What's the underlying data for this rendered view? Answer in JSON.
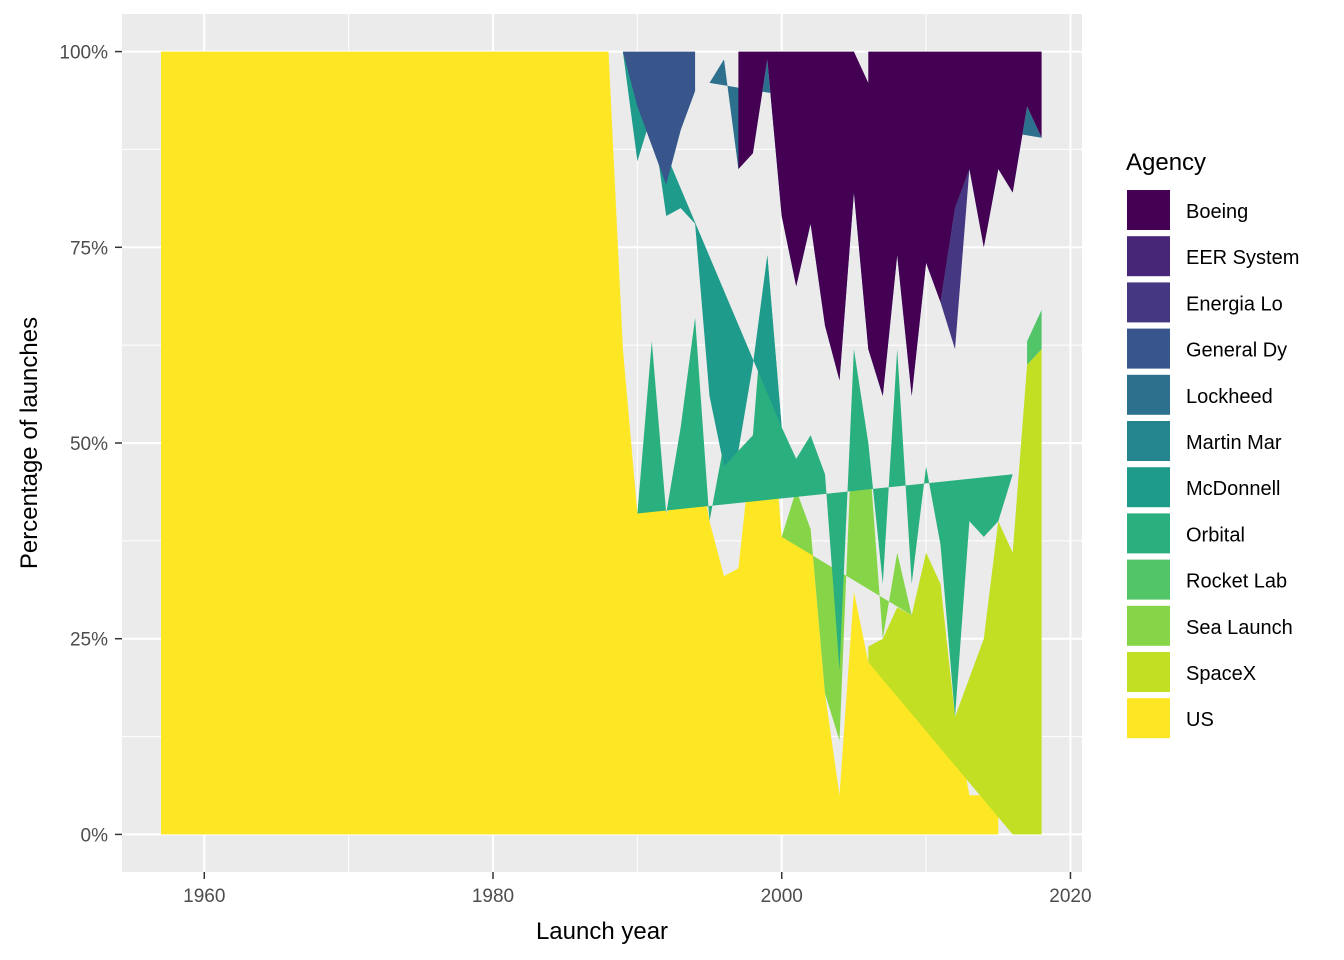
{
  "chart_data": {
    "type": "area",
    "xlabel": "Launch year",
    "ylabel": "Percentage of launches",
    "xlim": [
      1954.3,
      2020.8
    ],
    "ylim": [
      -0.048,
      1.048
    ],
    "x_ticks": [
      1960,
      1980,
      2000,
      2020
    ],
    "x_tick_labels": [
      "1960",
      "1980",
      "2000",
      "2020"
    ],
    "y_ticks": [
      0,
      0.25,
      0.5,
      0.75,
      1.0
    ],
    "y_tick_labels": [
      "0%",
      "25%",
      "50%",
      "75%",
      "100%"
    ],
    "grid": true,
    "legend": {
      "title": "Agency",
      "position": "right",
      "entries": [
        "Boeing",
        "EER System",
        "Energia Lo",
        "General Dy",
        "Lockheed",
        "Martin Mar",
        "McDonnell",
        "Orbital",
        "Rocket Lab",
        "Sea Launch",
        "SpaceX",
        "US"
      ]
    },
    "stack_order_bottom_to_top": [
      "US",
      "SpaceX",
      "Sea Launch",
      "Rocket Lab",
      "Orbital",
      "McDonnell",
      "Martin Mar",
      "Lockheed",
      "General Dy",
      "Energia Lo",
      "EER System",
      "Boeing"
    ],
    "series": [
      {
        "name": "US",
        "color": "#FDE725",
        "points": [
          [
            1957,
            1
          ],
          [
            1988,
            1
          ],
          [
            1989,
            0.62
          ],
          [
            1990,
            0.41
          ],
          [
            1991,
            0.58
          ],
          [
            1992,
            0.41
          ],
          [
            1993,
            0.44
          ],
          [
            1994,
            0.51
          ],
          [
            1995,
            0.4
          ],
          [
            1996,
            0.33
          ],
          [
            1997,
            0.34
          ],
          [
            1998,
            0.51
          ],
          [
            1999,
            0.61
          ],
          [
            2000,
            0.38
          ],
          [
            2001,
            0.39
          ],
          [
            2002,
            0.39
          ],
          [
            2003,
            0.18
          ],
          [
            2004,
            0.05
          ],
          [
            2005,
            0.31
          ],
          [
            2006,
            0.22
          ],
          [
            2007,
            0.2
          ],
          [
            2008,
            0.2
          ],
          [
            2009,
            0.24
          ],
          [
            2010,
            0.35
          ],
          [
            2011,
            0.32
          ],
          [
            2012,
            0.15
          ],
          [
            2013,
            0.05
          ],
          [
            2014,
            0.05
          ],
          [
            2015,
            0.05
          ]
        ]
      },
      {
        "name": "SpaceX",
        "color": "#C2DF23",
        "points": [
          [
            2006,
            0.22
          ],
          [
            2006,
            0.24
          ],
          [
            2007,
            0.25
          ],
          [
            2008,
            0.29
          ],
          [
            2009,
            0.28
          ],
          [
            2010,
            0.36
          ],
          [
            2011,
            0.32
          ],
          [
            2012,
            0.15
          ],
          [
            2013,
            0.2
          ],
          [
            2014,
            0.25
          ],
          [
            2015,
            0.4
          ],
          [
            2016,
            0.36
          ],
          [
            2017,
            0.6
          ],
          [
            2018,
            0.62
          ],
          [
            2018,
            0.0
          ],
          [
            2017,
            0.0
          ],
          [
            2016,
            0.0
          ]
        ]
      },
      {
        "name": "Sea Launch",
        "color": "#86D549",
        "points": [
          [
            2000,
            0.38
          ],
          [
            2001,
            0.44
          ],
          [
            2002,
            0.39
          ],
          [
            2003,
            0.18
          ],
          [
            2004,
            0.12
          ],
          [
            2005,
            0.57
          ],
          [
            2006,
            0.5
          ],
          [
            2007,
            0.25
          ],
          [
            2008,
            0.36
          ],
          [
            2009,
            0.28
          ]
        ]
      },
      {
        "name": "Rocket Lab",
        "color": "#52C569",
        "points": [
          [
            2017,
            0.6
          ],
          [
            2018,
            0.62
          ],
          [
            2018,
            0.67
          ],
          [
            2017,
            0.63
          ]
        ]
      },
      {
        "name": "Orbital",
        "color": "#2AB07F",
        "points": [
          [
            1990,
            0.41
          ],
          [
            1991,
            0.63
          ],
          [
            1992,
            0.41
          ],
          [
            1993,
            0.52
          ],
          [
            1994,
            0.66
          ],
          [
            1995,
            0.4
          ],
          [
            1996,
            0.5
          ],
          [
            1997,
            0.49
          ],
          [
            1998,
            0.51
          ],
          [
            1999,
            0.74
          ],
          [
            2000,
            0.52
          ],
          [
            2001,
            0.48
          ],
          [
            2002,
            0.51
          ],
          [
            2003,
            0.46
          ],
          [
            2004,
            0.21
          ],
          [
            2005,
            0.62
          ],
          [
            2006,
            0.5
          ],
          [
            2007,
            0.32
          ],
          [
            2008,
            0.62
          ],
          [
            2009,
            0.32
          ],
          [
            2010,
            0.47
          ],
          [
            2011,
            0.37
          ],
          [
            2012,
            0.15
          ],
          [
            2013,
            0.4
          ],
          [
            2014,
            0.38
          ],
          [
            2015,
            0.4
          ],
          [
            2016,
            0.46
          ]
        ]
      },
      {
        "name": "McDonnell",
        "color": "#1E9B8A",
        "points": [
          [
            1989,
            1.0
          ],
          [
            1990,
            0.86
          ],
          [
            1991,
            0.92
          ],
          [
            1992,
            0.79
          ],
          [
            1993,
            0.8
          ],
          [
            1994,
            0.78
          ],
          [
            1995,
            0.56
          ],
          [
            1996,
            0.47
          ],
          [
            1997,
            0.49
          ],
          [
            1998,
            0.6
          ],
          [
            1999,
            0.74
          ],
          [
            2000,
            0.52
          ]
        ]
      },
      {
        "name": "Martin Mar",
        "color": "#25858E",
        "points": [
          [
            1989,
            1.0
          ],
          [
            1990,
            0.93
          ],
          [
            1991,
            0.88
          ],
          [
            1992,
            0.83
          ],
          [
            1993,
            0.9
          ],
          [
            1994,
            0.95
          ]
        ]
      },
      {
        "name": "Lockheed",
        "color": "#2D708E",
        "points": [
          [
            1995,
            0.96
          ],
          [
            1996,
            0.99
          ],
          [
            1997,
            0.85
          ],
          [
            1998,
            0.87
          ],
          [
            1999,
            0.99
          ],
          [
            2000,
            0.79
          ],
          [
            2001,
            0.7
          ],
          [
            2002,
            0.78
          ],
          [
            2003,
            0.65
          ],
          [
            2004,
            0.58
          ],
          [
            2005,
            0.82
          ],
          [
            2006,
            0.62
          ],
          [
            2007,
            0.56
          ],
          [
            2008,
            0.74
          ],
          [
            2009,
            0.56
          ],
          [
            2010,
            0.73
          ],
          [
            2011,
            0.68
          ],
          [
            2012,
            0.8
          ],
          [
            2013,
            0.85
          ],
          [
            2014,
            0.75
          ],
          [
            2015,
            0.85
          ],
          [
            2016,
            0.82
          ],
          [
            2017,
            0.93
          ],
          [
            2018,
            0.89
          ]
        ]
      },
      {
        "name": "General Dy",
        "color": "#39568C",
        "points": [
          [
            1989,
            1.0
          ],
          [
            1994,
            1.0
          ],
          [
            1994,
            0.95
          ],
          [
            1993,
            0.9
          ],
          [
            1992,
            0.83
          ],
          [
            1991,
            0.88
          ],
          [
            1990,
            0.93
          ]
        ]
      },
      {
        "name": "Energia Lo",
        "color": "#453781",
        "points": [
          [
            2011,
            0.68
          ],
          [
            2012,
            0.8
          ],
          [
            2013,
            0.85
          ],
          [
            2012,
            0.62
          ]
        ]
      },
      {
        "name": "EER System",
        "color": "#482677",
        "points": []
      },
      {
        "name": "Boeing",
        "color": "#440154",
        "points": [
          [
            1997,
            1.0
          ],
          [
            2005,
            1.0
          ],
          [
            2006,
            0.96
          ],
          [
            2006,
            1.0
          ],
          [
            2018,
            1.0
          ],
          [
            2018,
            0.89
          ],
          [
            2017,
            0.93
          ],
          [
            2016,
            0.82
          ],
          [
            2015,
            0.85
          ],
          [
            2014,
            0.75
          ],
          [
            2013,
            0.85
          ],
          [
            2012,
            0.8
          ],
          [
            2011,
            0.68
          ],
          [
            2010,
            0.73
          ],
          [
            2009,
            0.56
          ],
          [
            2008,
            0.74
          ],
          [
            2007,
            0.56
          ],
          [
            2006,
            0.62
          ],
          [
            2005,
            0.82
          ],
          [
            2004,
            0.58
          ],
          [
            2003,
            0.65
          ],
          [
            2002,
            0.78
          ],
          [
            2001,
            0.7
          ],
          [
            2000,
            0.79
          ],
          [
            1999,
            0.99
          ],
          [
            1998,
            0.87
          ],
          [
            1997,
            0.85
          ]
        ]
      }
    ]
  }
}
